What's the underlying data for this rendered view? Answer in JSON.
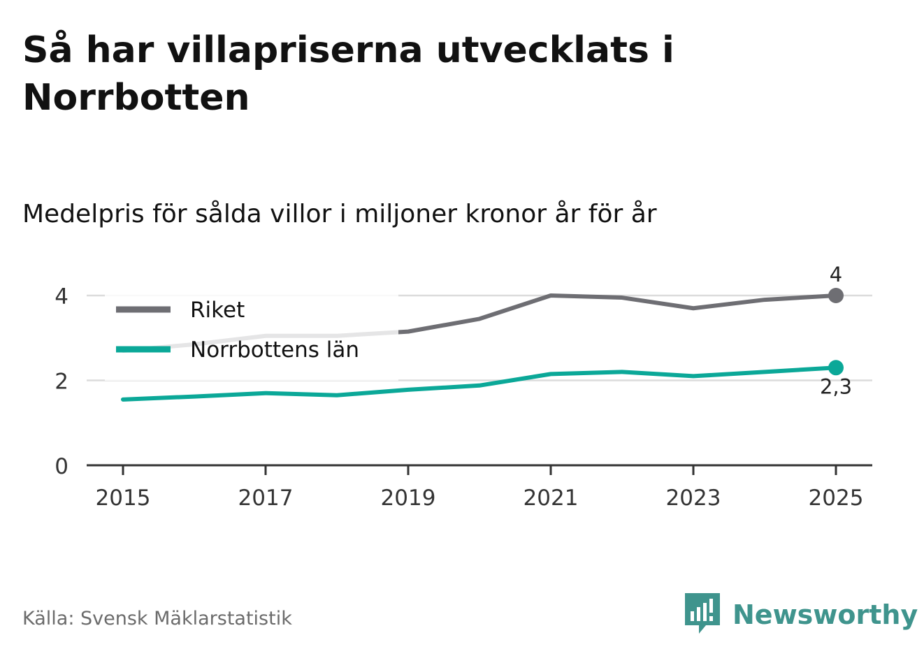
{
  "header": {
    "title": "Så har villapriserna utvecklats i Norrbotten",
    "subtitle": "Medelpris för sålda villor i miljoner kronor år för år"
  },
  "footer": {
    "source": "Källa: Svensk Mäklarstatistik",
    "brand": "Newsworthy",
    "brand_icon": "bar-chart-icon",
    "brand_color": "#3f948d"
  },
  "chart_data": {
    "type": "line",
    "title": "Så har villapriserna utvecklats i Norrbotten",
    "subtitle": "Medelpris för sålda villor i miljoner kronor år för år",
    "xlabel": "",
    "ylabel": "",
    "x": [
      2015,
      2016,
      2017,
      2018,
      2019,
      2020,
      2021,
      2022,
      2023,
      2024,
      2025
    ],
    "x_ticks": [
      "2015",
      "2017",
      "2019",
      "2021",
      "2023",
      "2025"
    ],
    "y_ticks": [
      "0",
      "2",
      "4"
    ],
    "ylim": [
      0,
      4
    ],
    "grid": true,
    "legend_position": "top-left",
    "series": [
      {
        "name": "Riket",
        "color": "#6e6e73",
        "values": [
          2.7,
          2.85,
          3.05,
          3.05,
          3.15,
          3.45,
          4.0,
          3.95,
          3.7,
          3.9,
          4.0
        ],
        "end_label": "4"
      },
      {
        "name": "Norrbottens län",
        "color": "#0ba898",
        "values": [
          1.55,
          1.62,
          1.7,
          1.65,
          1.78,
          1.88,
          2.15,
          2.2,
          2.1,
          2.2,
          2.3
        ],
        "end_label": "2,3"
      }
    ]
  }
}
